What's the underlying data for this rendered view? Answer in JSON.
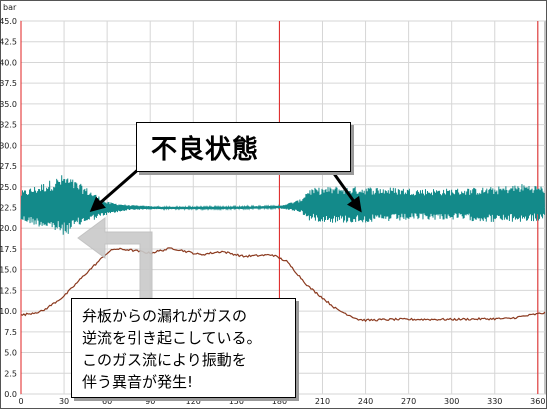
{
  "chart_data": {
    "type": "line",
    "ylabel": "bar",
    "ylim": [
      0,
      45
    ],
    "y_ticks": [
      "0.0",
      "2.5",
      "5.0",
      "7.5",
      "10.0",
      "12.5",
      "15.0",
      "17.5",
      "20.0",
      "22.5",
      "25.0",
      "27.5",
      "30.0",
      "32.5",
      "35.0",
      "37.5",
      "40.0",
      "42.5",
      "45.0"
    ],
    "xlim": [
      0,
      365
    ],
    "x_ticks": [
      "0",
      "30",
      "60",
      "90",
      "120",
      "150",
      "180",
      "210",
      "240",
      "270",
      "300",
      "330",
      "360"
    ],
    "markers_x": [
      0,
      180,
      360
    ],
    "grid": true,
    "series": [
      {
        "color": "#138a8a",
        "kind": "band",
        "x": [
          0,
          20,
          30,
          45,
          60,
          75,
          100,
          140,
          180,
          195,
          200,
          220,
          250,
          280,
          300,
          330,
          350,
          365
        ],
        "lower": [
          20.8,
          19.8,
          19.0,
          20.6,
          21.6,
          22.2,
          22.3,
          22.3,
          22.4,
          21.9,
          20.9,
          20.6,
          20.7,
          21.0,
          21.0,
          20.7,
          20.7,
          20.9
        ],
        "upper": [
          24.5,
          25.8,
          26.6,
          25.0,
          23.2,
          22.8,
          22.6,
          22.6,
          22.7,
          23.5,
          24.8,
          25.1,
          25.0,
          24.8,
          24.8,
          25.0,
          25.4,
          25.1
        ]
      },
      {
        "color": "#8b3a1f",
        "kind": "line",
        "x": [
          0,
          15,
          30,
          45,
          60,
          65,
          75,
          90,
          105,
          125,
          140,
          155,
          175,
          185,
          200,
          220,
          235,
          240,
          260,
          300,
          340,
          365
        ],
        "y": [
          9.5,
          10.0,
          11.8,
          14.5,
          17.0,
          17.5,
          17.4,
          17.0,
          17.6,
          16.8,
          17.2,
          16.6,
          16.8,
          16.0,
          13.0,
          10.2,
          9.0,
          8.9,
          9.0,
          9.0,
          9.1,
          9.8
        ]
      }
    ]
  },
  "annotations": {
    "state_label": "不良状態",
    "explanation": [
      "弁板からの漏れがガスの",
      "逆流を引き起こしている。",
      "このガス流により振動を",
      "伴う異音が発生!"
    ]
  }
}
